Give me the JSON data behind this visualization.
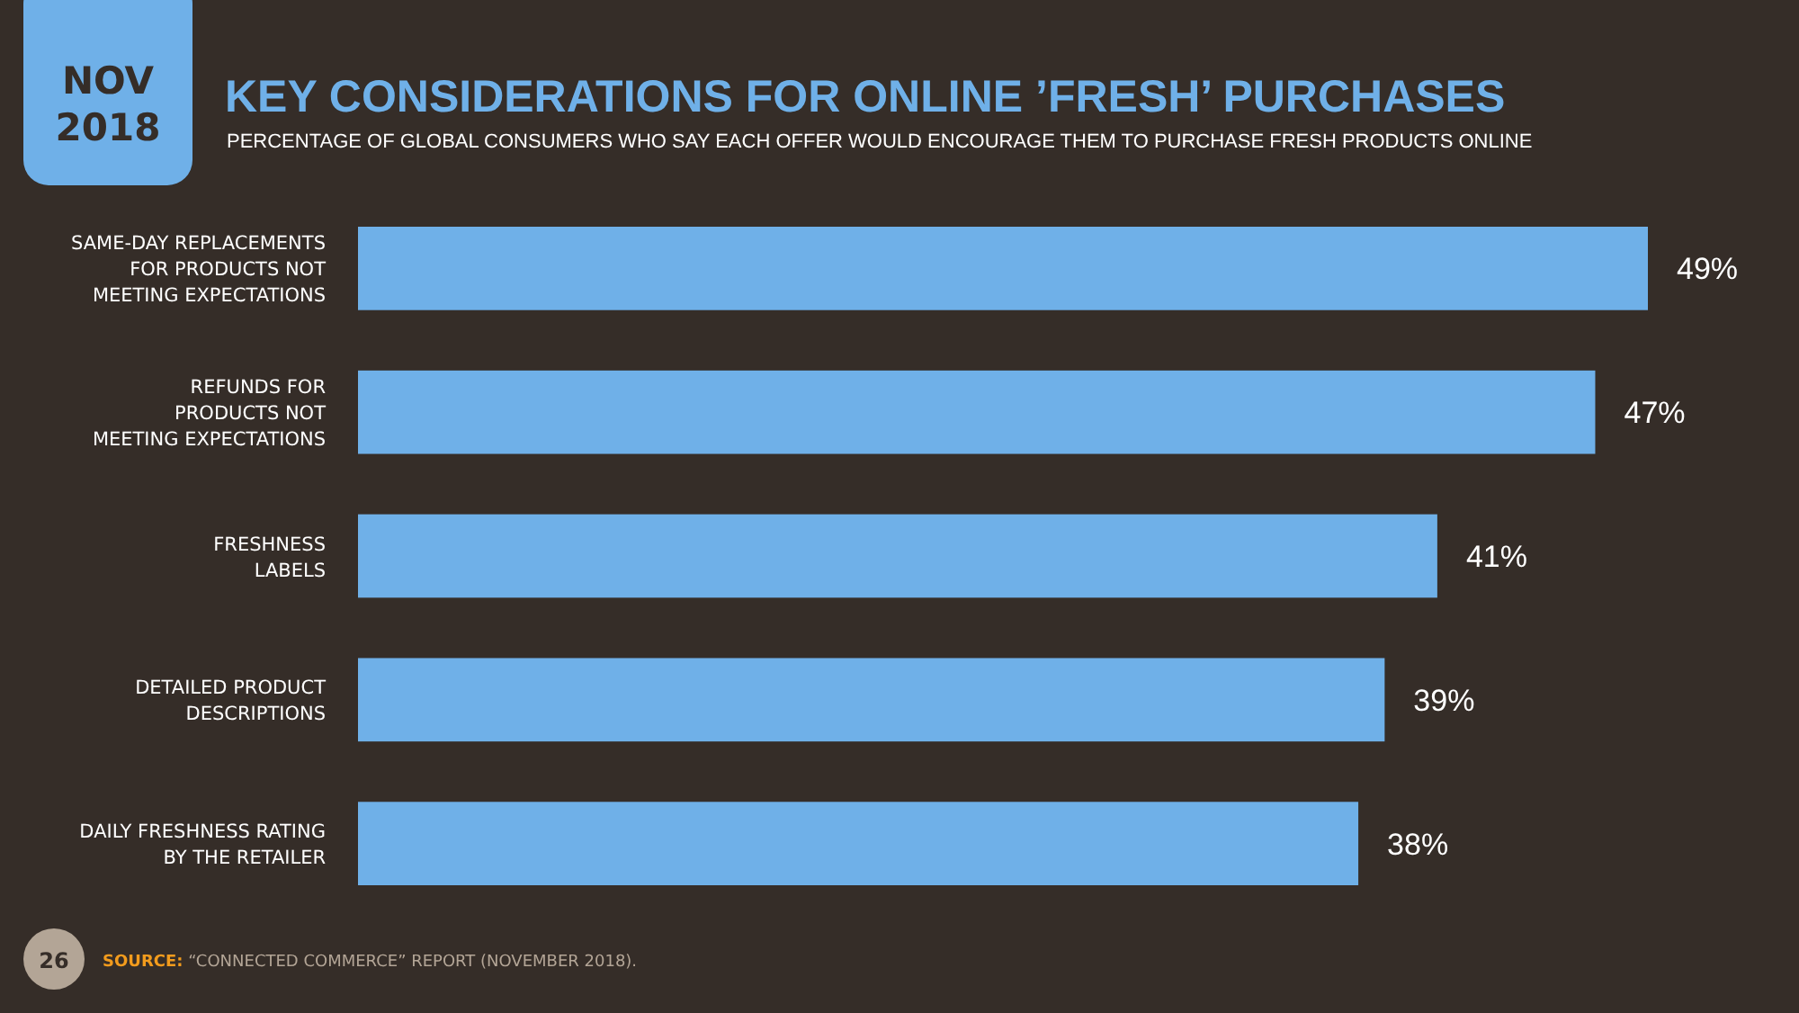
{
  "chart_data": {
    "type": "bar",
    "orientation": "horizontal",
    "title": "KEY CONSIDERATIONS FOR ONLINE ’FRESH’ PURCHASES",
    "subtitle": "PERCENTAGE OF GLOBAL CONSUMERS WHO SAY EACH OFFER WOULD ENCOURAGE THEM TO PURCHASE FRESH PRODUCTS ONLINE",
    "categories": [
      "SAME-DAY REPLACEMENTS\nFOR PRODUCTS NOT\nMEETING EXPECTATIONS",
      "REFUNDS FOR\nPRODUCTS NOT\nMEETING EXPECTATIONS",
      "FRESHNESS\nLABELS",
      "DETAILED PRODUCT\nDESCRIPTIONS",
      "DAILY FRESHNESS RATING\nBY THE RETAILER"
    ],
    "values": [
      49,
      47,
      41,
      39,
      38
    ],
    "color": "#6fb0e8",
    "data_labels": true,
    "value_labels": [
      "49%",
      "47%",
      "41%",
      "39%",
      "38%"
    ],
    "annotations": [
      "NOV\n2018",
      "26",
      "SOURCE: “CONNECTED COMMERCE” REPORT (NOVEMBER 2018)."
    ]
  }
}
